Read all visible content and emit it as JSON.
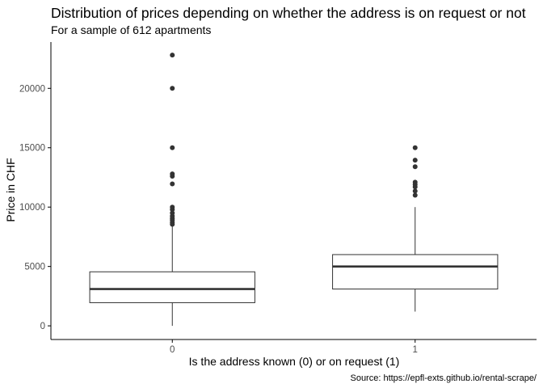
{
  "chart_data": {
    "type": "box",
    "title": "Distribution of prices depending on whether the address is on request or not",
    "subtitle": "For a sample of 612 apartments",
    "caption": "Source: https://epfl-exts.github.io/rental-scrape/",
    "xlabel": "Is the address known (0) or on request (1)",
    "ylabel": "Price in CHF",
    "categories": [
      "0",
      "1"
    ],
    "ylim": [
      -1150,
      23900
    ],
    "yticks": [
      0,
      5000,
      10000,
      15000,
      20000
    ],
    "ytick_labels": [
      "0",
      "5000",
      "10000",
      "15000",
      "20000"
    ],
    "grid": false,
    "boxes": [
      {
        "category": "0",
        "whisker_low": 0,
        "q1": 1950,
        "median": 3100,
        "q3": 4550,
        "whisker_high": 8400,
        "outliers": [
          8550,
          8700,
          8900,
          9050,
          9250,
          9500,
          9800,
          10000,
          11950,
          12600,
          12800,
          15000,
          20000,
          22800
        ]
      },
      {
        "category": "1",
        "whisker_low": 1200,
        "q1": 3100,
        "median": 5000,
        "q3": 6000,
        "whisker_high": 10000,
        "outliers": [
          11000,
          11350,
          11700,
          11900,
          12100,
          13400,
          13950,
          15000
        ]
      }
    ],
    "colors": {
      "box_line": "#333333",
      "outlier": "#333333",
      "axis": "#000000"
    }
  }
}
